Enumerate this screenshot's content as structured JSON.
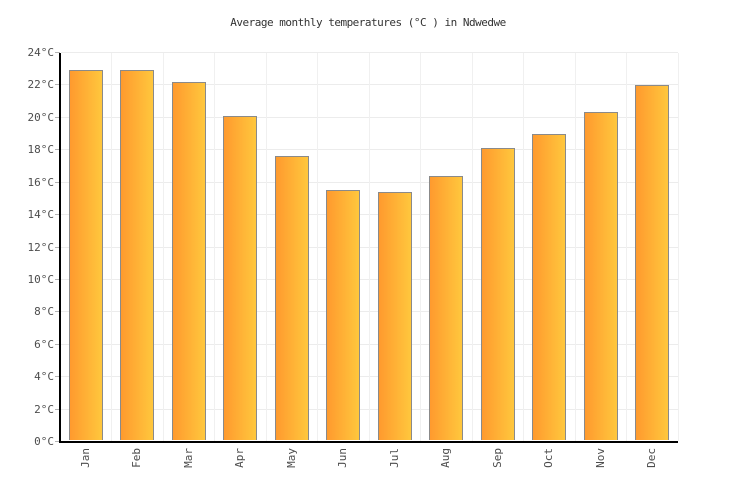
{
  "title": "Average monthly temperatures (°C ) in Ndwedwe",
  "chart_data": {
    "type": "bar",
    "title": "Average monthly temperatures (°C ) in Ndwedwe",
    "categories": [
      "Jan",
      "Feb",
      "Mar",
      "Apr",
      "May",
      "Jun",
      "Jul",
      "Aug",
      "Sep",
      "Oct",
      "Nov",
      "Dec"
    ],
    "values": [
      22.9,
      22.9,
      22.2,
      20.1,
      17.6,
      15.5,
      15.4,
      16.4,
      18.1,
      19.0,
      20.3,
      22.0
    ],
    "unit": "°C",
    "xlabel": "",
    "ylabel": "",
    "ylim": [
      0,
      24
    ],
    "ytick_step": 2,
    "ytick_labels": [
      "0°C",
      "2°C",
      "4°C",
      "6°C",
      "8°C",
      "10°C",
      "12°C",
      "14°C",
      "16°C",
      "18°C",
      "20°C",
      "22°C",
      "24°C"
    ],
    "grid": true,
    "legend": false,
    "colors": {
      "bar_gradient_left": "#ff9a2e",
      "bar_gradient_right": "#ffc73d",
      "bar_border": "#8a8a8a",
      "axis": "#000000",
      "gridline_h": "#ececec",
      "gridline_v": "#f0f0f0",
      "tick": "#b3b3b3",
      "tick_label": "#4d4d4d",
      "title": "#333333",
      "background": "#ffffff"
    }
  }
}
